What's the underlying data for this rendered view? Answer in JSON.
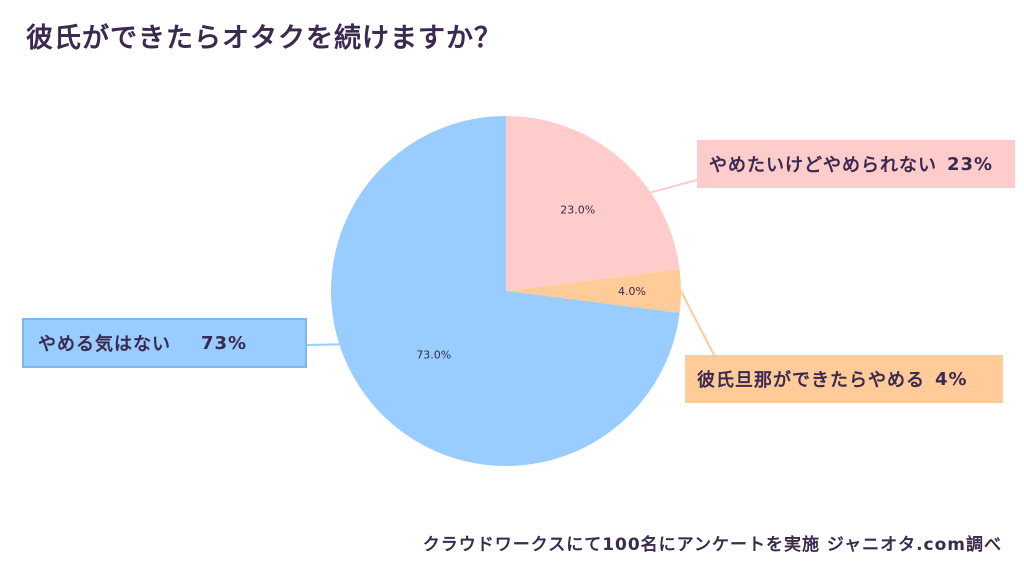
{
  "title": "彼氏ができたらオタクを続けますか？",
  "source": "クラウドワークスにて100名にアンケートを実施 ジャニオタ.com調べ",
  "colors": {
    "text": "#3b2a4f",
    "blue": "#99ccff",
    "pink": "#ffcccc",
    "orange": "#ffcc99"
  },
  "chart_data": {
    "type": "pie",
    "title": "彼氏ができたらオタクを続けますか？",
    "slices": [
      {
        "label": "やめたいけどやめられない",
        "value": 23.0,
        "value_label": "23.0%",
        "legend_pct": "23%",
        "color": "#ffcccc"
      },
      {
        "label": "彼氏旦那ができたらやめる",
        "value": 4.0,
        "value_label": "4.0%",
        "legend_pct": "4%",
        "color": "#ffcc99"
      },
      {
        "label": "やめる気はない",
        "value": 73.0,
        "value_label": "73.0%",
        "legend_pct": "73%",
        "color": "#99ccff"
      }
    ],
    "start_angle": "top (12 o'clock)",
    "direction": "clockwise"
  }
}
